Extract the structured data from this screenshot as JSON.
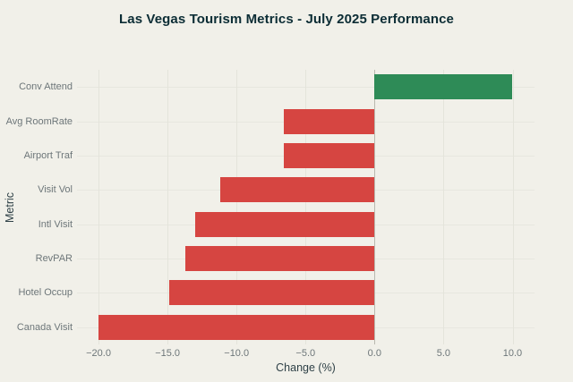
{
  "chart_data": {
    "type": "bar",
    "orientation": "horizontal",
    "title": "Las Vegas Tourism Metrics - July 2025 Performance",
    "xlabel": "Change (%)",
    "ylabel": "Metric",
    "categories": [
      "Conv Attend",
      "Avg RoomRate",
      "Airport Traf",
      "Visit Vol",
      "Intl Visit",
      "RevPAR",
      "Hotel Occup",
      "Canada Visit"
    ],
    "values": [
      10.0,
      -6.6,
      -6.6,
      -11.2,
      -13.0,
      -13.7,
      -14.9,
      -20.0
    ],
    "xticks": [
      -20.0,
      -15.0,
      -10.0,
      -5.0,
      0.0,
      5.0,
      10.0
    ],
    "xlim": [
      -21.56,
      11.59
    ],
    "grid": true,
    "legend": "none",
    "colors": {
      "positive": "#2e8b57",
      "negative": "#d64541",
      "background": "#f1f0e9",
      "gridline": "#e4e4db",
      "zeroline": "#b9b9b0",
      "title_text": "#0c2d35",
      "axis_title_text": "#2f4147",
      "tick_text": "#6d7679"
    }
  }
}
